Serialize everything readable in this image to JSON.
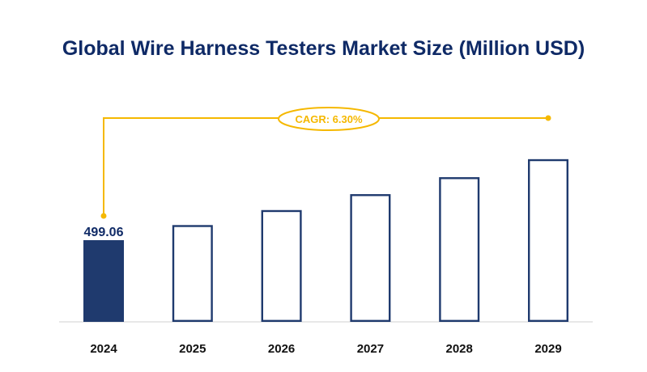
{
  "chart_data": {
    "type": "bar",
    "title": "Global Wire Harness Testers Market Size (Million USD)",
    "categories": [
      "2024",
      "2025",
      "2026",
      "2027",
      "2028",
      "2029"
    ],
    "values": [
      499.06,
      530.5,
      563.9,
      599.4,
      637.2,
      677.3
    ],
    "data_labels": {
      "2024": "499.06"
    },
    "annotation": "CAGR: 6.30%",
    "grid": false,
    "legend": "none",
    "colors": {
      "filled_bar": "#1f3a6e",
      "outline_bar": "#1f3a6e",
      "annotation": "#f5b800",
      "title": "#0f2a66",
      "axis": "#d0d0d0"
    }
  }
}
